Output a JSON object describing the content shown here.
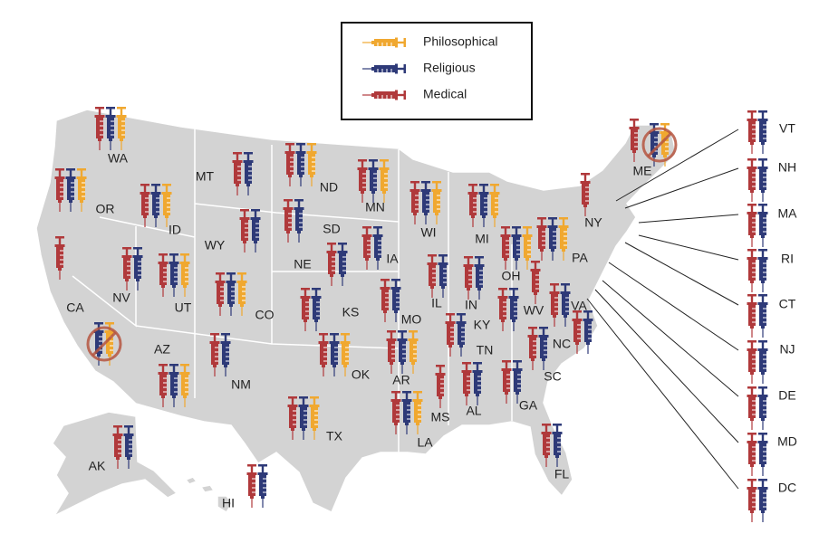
{
  "legend": {
    "items": [
      {
        "label": "Philosophical",
        "color": "#f0a830"
      },
      {
        "label": "Religious",
        "color": "#2e3a78"
      },
      {
        "label": "Medical",
        "color": "#b0393b"
      }
    ]
  },
  "eliminated_color": "#b5553f",
  "states": [
    {
      "label": "WA",
      "exemptions": [
        true,
        true,
        true
      ]
    },
    {
      "label": "OR",
      "exemptions": [
        true,
        true,
        true
      ]
    },
    {
      "label": "CA",
      "exemptions": [
        false,
        false,
        true
      ],
      "eliminated": true
    },
    {
      "label": "ID",
      "exemptions": [
        true,
        true,
        true
      ]
    },
    {
      "label": "NV",
      "exemptions": [
        false,
        true,
        true
      ]
    },
    {
      "label": "MT",
      "exemptions": [
        false,
        true,
        true
      ]
    },
    {
      "label": "WY",
      "exemptions": [
        false,
        true,
        true
      ]
    },
    {
      "label": "UT",
      "exemptions": [
        true,
        true,
        true
      ]
    },
    {
      "label": "AZ",
      "exemptions": [
        true,
        true,
        true
      ]
    },
    {
      "label": "CO",
      "exemptions": [
        true,
        true,
        true
      ]
    },
    {
      "label": "NM",
      "exemptions": [
        false,
        true,
        true
      ]
    },
    {
      "label": "ND",
      "exemptions": [
        true,
        true,
        true
      ]
    },
    {
      "label": "SD",
      "exemptions": [
        false,
        true,
        true
      ]
    },
    {
      "label": "NE",
      "exemptions": [
        false,
        true,
        true
      ]
    },
    {
      "label": "KS",
      "exemptions": [
        false,
        true,
        true
      ]
    },
    {
      "label": "OK",
      "exemptions": [
        true,
        true,
        true
      ]
    },
    {
      "label": "TX",
      "exemptions": [
        true,
        true,
        true
      ]
    },
    {
      "label": "MN",
      "exemptions": [
        true,
        true,
        true
      ]
    },
    {
      "label": "IA",
      "exemptions": [
        false,
        true,
        true
      ]
    },
    {
      "label": "MO",
      "exemptions": [
        false,
        true,
        true
      ]
    },
    {
      "label": "AR",
      "exemptions": [
        true,
        true,
        true
      ]
    },
    {
      "label": "LA",
      "exemptions": [
        true,
        true,
        true
      ]
    },
    {
      "label": "WI",
      "exemptions": [
        true,
        true,
        true
      ]
    },
    {
      "label": "IL",
      "exemptions": [
        false,
        true,
        true
      ]
    },
    {
      "label": "MI",
      "exemptions": [
        true,
        true,
        true
      ]
    },
    {
      "label": "IN",
      "exemptions": [
        false,
        true,
        true
      ]
    },
    {
      "label": "OH",
      "exemptions": [
        true,
        true,
        true
      ]
    },
    {
      "label": "KY",
      "exemptions": [
        false,
        true,
        true
      ]
    },
    {
      "label": "TN",
      "exemptions": [
        false,
        true,
        true
      ]
    },
    {
      "label": "MS",
      "exemptions": [
        false,
        false,
        true
      ]
    },
    {
      "label": "AL",
      "exemptions": [
        false,
        true,
        true
      ]
    },
    {
      "label": "GA",
      "exemptions": [
        false,
        true,
        true
      ]
    },
    {
      "label": "SC",
      "exemptions": [
        false,
        true,
        true
      ]
    },
    {
      "label": "NC",
      "exemptions": [
        false,
        true,
        true
      ]
    },
    {
      "label": "WV",
      "exemptions": [
        false,
        false,
        true
      ]
    },
    {
      "label": "VA",
      "exemptions": [
        false,
        true,
        true
      ]
    },
    {
      "label": "FL",
      "exemptions": [
        false,
        true,
        true
      ]
    },
    {
      "label": "PA",
      "exemptions": [
        true,
        true,
        true
      ]
    },
    {
      "label": "NY",
      "exemptions": [
        false,
        false,
        true
      ]
    },
    {
      "label": "ME",
      "exemptions": [
        false,
        false,
        true
      ],
      "eliminated": true
    },
    {
      "label": "AK",
      "exemptions": [
        false,
        true,
        true
      ]
    },
    {
      "label": "HI",
      "exemptions": [
        false,
        true,
        true
      ]
    },
    {
      "label": "VT",
      "exemptions": [
        false,
        true,
        true
      ]
    },
    {
      "label": "NH",
      "exemptions": [
        false,
        true,
        true
      ]
    },
    {
      "label": "MA",
      "exemptions": [
        false,
        true,
        true
      ]
    },
    {
      "label": "RI",
      "exemptions": [
        false,
        true,
        true
      ]
    },
    {
      "label": "CT",
      "exemptions": [
        false,
        true,
        true
      ]
    },
    {
      "label": "NJ",
      "exemptions": [
        false,
        true,
        true
      ]
    },
    {
      "label": "DE",
      "exemptions": [
        false,
        true,
        true
      ]
    },
    {
      "label": "MD",
      "exemptions": [
        false,
        true,
        true
      ]
    },
    {
      "label": "DC",
      "exemptions": [
        false,
        true,
        true
      ]
    }
  ]
}
